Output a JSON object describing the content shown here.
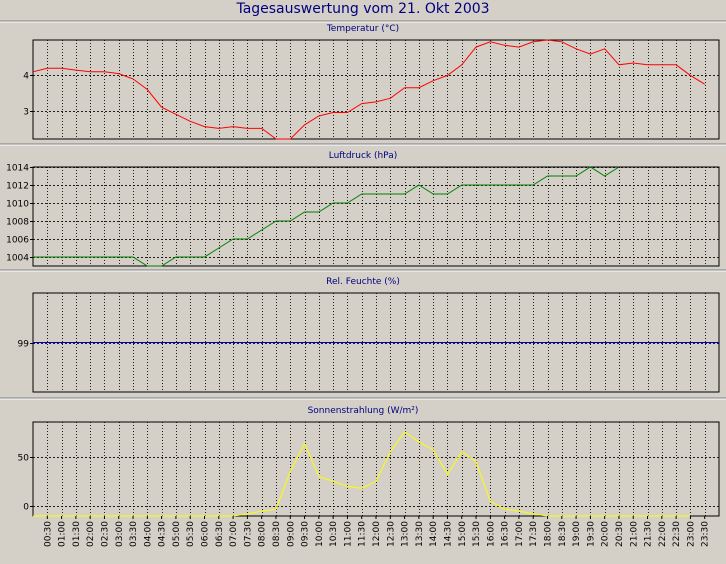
{
  "window": {
    "title": "Tagesauswertung vom 21. Okt 2003"
  },
  "colors": {
    "background": "#d4d0c8",
    "plot_bg": "#d4d0c8",
    "title": "#000080",
    "grid": "#000000",
    "temperature": "#ff0000",
    "pressure": "#008000",
    "humidity": "#0000cc",
    "solar": "#ffff00"
  },
  "x_axis": {
    "tick_labels": [
      "00:30",
      "01:00",
      "01:30",
      "02:00",
      "02:30",
      "03:00",
      "03:30",
      "04:00",
      "04:30",
      "05:00",
      "05:30",
      "06:00",
      "06:30",
      "07:00",
      "07:30",
      "08:00",
      "08:30",
      "09:00",
      "09:30",
      "10:00",
      "10:30",
      "11:00",
      "11:30",
      "12:00",
      "12:30",
      "13:00",
      "13:30",
      "14:00",
      "14:30",
      "15:00",
      "15:30",
      "16:00",
      "16:30",
      "17:00",
      "17:30",
      "18:00",
      "18:30",
      "19:00",
      "19:30",
      "20:00",
      "20:30",
      "21:00",
      "21:30",
      "22:00",
      "22:30",
      "23:00",
      "23:30"
    ]
  },
  "chart_data": [
    {
      "type": "line",
      "title": "Temperatur (°C)",
      "xlabel": "",
      "ylabel": "",
      "ylim": [
        2.2,
        5.0
      ],
      "yticks": [
        3,
        4
      ],
      "grid": true,
      "series": [
        {
          "x": [
            0.0,
            0.5,
            1.0,
            1.5,
            2.0,
            2.5,
            3.0,
            3.5,
            4.0,
            4.5,
            5.0,
            5.5,
            6.0,
            6.5,
            7.0,
            7.5,
            8.0,
            8.5,
            9.0,
            9.5,
            10.0,
            10.5,
            11.0,
            11.5,
            12.0,
            12.5,
            13.0,
            13.5,
            14.0,
            14.5,
            15.0,
            15.5,
            16.0,
            16.5,
            17.0,
            17.5,
            18.0,
            18.5,
            19.0,
            19.5,
            20.0,
            20.5,
            21.0,
            21.5,
            22.0,
            22.5,
            23.0,
            23.5
          ],
          "y": [
            4.1,
            4.2,
            4.2,
            4.15,
            4.1,
            4.1,
            4.05,
            3.9,
            3.6,
            3.1,
            2.9,
            2.7,
            2.55,
            2.5,
            2.55,
            2.5,
            2.5,
            2.2,
            2.2,
            2.6,
            2.85,
            2.95,
            2.95,
            3.2,
            3.25,
            3.35,
            3.65,
            3.65,
            3.85,
            4.0,
            4.3,
            4.8,
            4.95,
            4.85,
            4.8,
            4.95,
            5.0,
            4.95,
            4.75,
            4.6,
            4.75,
            4.3,
            4.35,
            4.3,
            4.3,
            4.3,
            4.0,
            3.75
          ]
        }
      ]
    },
    {
      "type": "line",
      "title": "Luftdruck (hPa)",
      "xlabel": "",
      "ylabel": "",
      "ylim": [
        1003,
        1014
      ],
      "yticks": [
        1004,
        1006,
        1008,
        1010,
        1012,
        1014
      ],
      "grid": true,
      "series": [
        {
          "x": [
            0.0,
            0.5,
            1.0,
            1.5,
            2.0,
            2.5,
            3.0,
            3.5,
            4.0,
            4.5,
            5.0,
            5.5,
            6.0,
            6.5,
            7.0,
            7.5,
            8.0,
            8.5,
            9.0,
            9.5,
            10.0,
            10.5,
            11.0,
            11.5,
            12.0,
            12.5,
            13.0,
            13.5,
            14.0,
            14.5,
            15.0,
            15.5,
            16.0,
            16.5,
            17.0,
            17.5,
            18.0,
            18.5,
            19.0,
            19.5,
            20.0,
            20.5
          ],
          "y": [
            1004,
            1004,
            1004,
            1004,
            1004,
            1004,
            1004,
            1004,
            1003,
            1003,
            1004,
            1004,
            1004,
            1005,
            1006,
            1006,
            1007,
            1008,
            1008,
            1009,
            1009,
            1010,
            1010,
            1011,
            1011,
            1011,
            1011,
            1012,
            1011,
            1011,
            1012,
            1012,
            1012,
            1012,
            1012,
            1012,
            1013,
            1013,
            1013,
            1014,
            1013,
            1014
          ]
        }
      ]
    },
    {
      "type": "line",
      "title": "Rel. Feuchte (%)",
      "xlabel": "",
      "ylabel": "",
      "ylim": [
        98,
        100
      ],
      "yticks": [
        99
      ],
      "grid": true,
      "series": [
        {
          "x": [
            0.0,
            24.0
          ],
          "y": [
            99,
            99
          ]
        }
      ]
    },
    {
      "type": "line",
      "title": "Sonnenstrahlung (W/m²)",
      "xlabel": "",
      "ylabel": "",
      "ylim": [
        -10,
        85
      ],
      "yticks": [
        0,
        50
      ],
      "grid": true,
      "series": [
        {
          "x": [
            0.0,
            1.0,
            2.0,
            3.0,
            4.0,
            5.0,
            6.0,
            7.0,
            7.5,
            8.0,
            8.5,
            9.0,
            9.5,
            10.0,
            10.5,
            11.0,
            11.5,
            12.0,
            12.5,
            13.0,
            13.5,
            14.0,
            14.5,
            15.0,
            15.5,
            16.0,
            16.5,
            17.0,
            17.5,
            18.0,
            19.0,
            20.0,
            21.0,
            22.0,
            23.0
          ],
          "y": [
            -10,
            -10,
            -10,
            -10,
            -10,
            -10,
            -10,
            -10,
            -8,
            -5,
            -3,
            35,
            63,
            30,
            25,
            20,
            18,
            25,
            55,
            75,
            65,
            57,
            32,
            55,
            45,
            5,
            -3,
            -5,
            -8,
            -10,
            -10,
            -10,
            -10,
            -10,
            -10
          ]
        }
      ]
    }
  ]
}
